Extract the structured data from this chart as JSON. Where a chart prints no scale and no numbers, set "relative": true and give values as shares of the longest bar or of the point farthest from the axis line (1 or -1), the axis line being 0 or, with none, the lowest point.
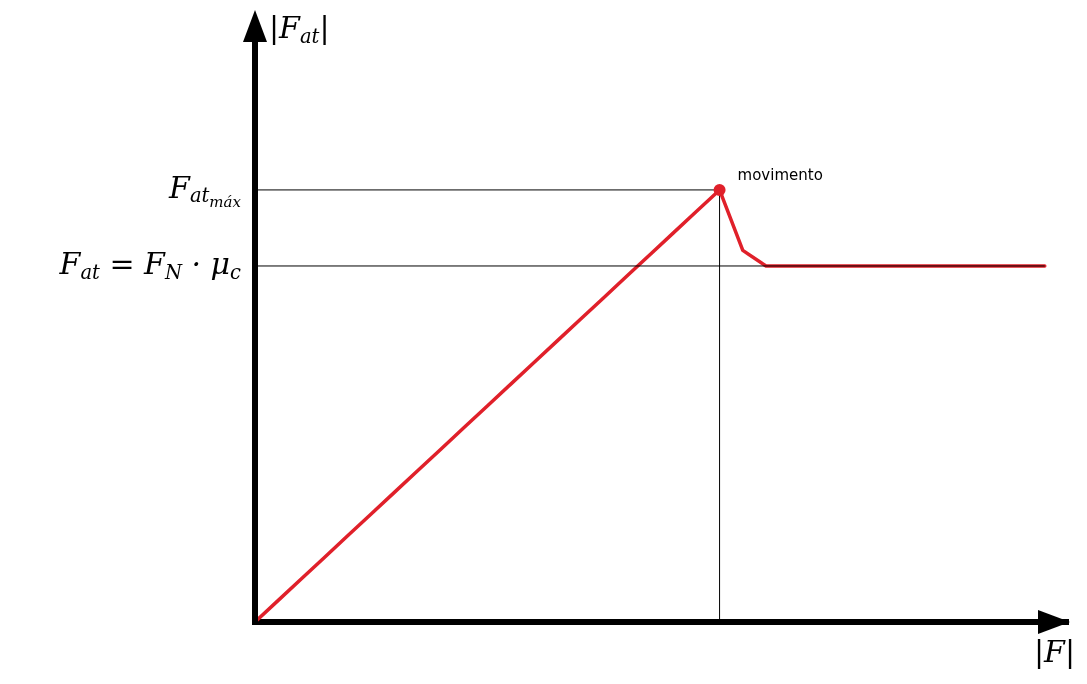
{
  "chart_data": {
    "type": "line",
    "relative": true,
    "xlabel": "|F|",
    "ylabel": "|F$_{at}$|",
    "categories": [
      null,
      null,
      null,
      null,
      null,
      null,
      null,
      null,
      null,
      null,
      null,
      null,
      null,
      null,
      null,
      null,
      null,
      null,
      null,
      null,
      null,
      null,
      null,
      null,
      null,
      null,
      null,
      null,
      null,
      null,
      null,
      null,
      null,
      null,
      null,
      null
    ],
    "series": [
      {
        "color": "#e0202a",
        "values": [
          0,
          0.05,
          0.1,
          0.15,
          0.2,
          0.25,
          0.3,
          0.35,
          0.4,
          0.45,
          0.5,
          0.55,
          0.6,
          0.65,
          0.7,
          0.75,
          0.8,
          0.85,
          0.9,
          0.95,
          1,
          0.86,
          0.824,
          0.824,
          0.824,
          0.824,
          0.824,
          0.824,
          0.824,
          0.824,
          0.824,
          0.824,
          0.824,
          0.824,
          0.824,
          null
        ]
      }
    ],
    "ref_lines": [
      {
        "axis": "y",
        "value": 1,
        "label": "F$_{at}$$_{máx}$",
        "color": "#000000"
      },
      {
        "axis": "y",
        "value": 0.824,
        "label": "F$_{at}$ = F$_{N}$ · μ$_{c}$",
        "color": "#000000"
      }
    ],
    "annotations": [
      "movimento"
    ],
    "grid": false,
    "legend": false,
    "marker": "none",
    "line_style": "solid"
  }
}
